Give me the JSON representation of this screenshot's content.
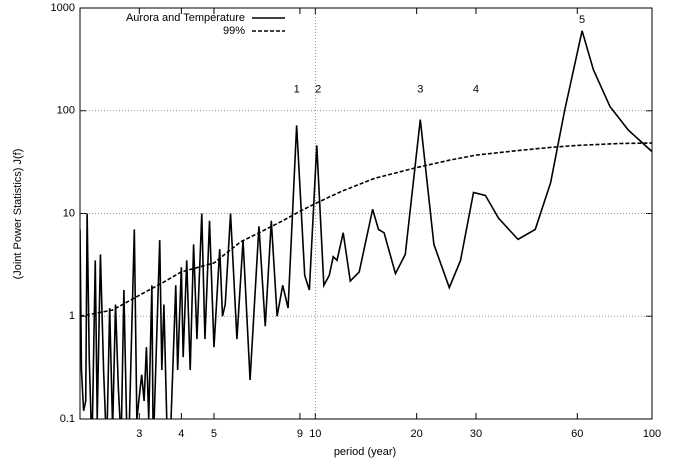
{
  "chart_data": {
    "type": "line",
    "xlabel": "period (year)",
    "ylabel": "(Joint Power Statistics)  J(f)",
    "xscale": "log",
    "yscale": "log",
    "xlim": [
      2,
      100
    ],
    "ylim": [
      0.1,
      1000
    ],
    "xticks": [
      3,
      4,
      5,
      9,
      10,
      20,
      30,
      60,
      100
    ],
    "yticks": [
      0.1,
      1,
      10,
      100,
      1000
    ],
    "grid": "y",
    "vline": 10,
    "legend": "upper left",
    "series": [
      {
        "name": "Aurora and Temperature",
        "color": "#000000",
        "dash": "solid",
        "x": [
          2.0,
          2.02,
          2.05,
          2.08,
          2.1,
          2.13,
          2.17,
          2.22,
          2.25,
          2.3,
          2.35,
          2.4,
          2.45,
          2.5,
          2.55,
          2.6,
          2.65,
          2.7,
          2.75,
          2.8,
          2.9,
          2.95,
          3.05,
          3.1,
          3.15,
          3.2,
          3.27,
          3.3,
          3.45,
          3.5,
          3.55,
          3.62,
          3.7,
          3.85,
          3.9,
          4.0,
          4.05,
          4.15,
          4.25,
          4.35,
          4.45,
          4.6,
          4.7,
          4.85,
          5.0,
          5.2,
          5.3,
          5.4,
          5.6,
          5.85,
          6.1,
          6.4,
          6.8,
          7.1,
          7.4,
          7.7,
          8.0,
          8.3,
          8.8,
          9.3,
          9.6,
          10.1,
          10.6,
          11.0,
          11.3,
          11.6,
          12.1,
          12.7,
          13.5,
          14.8,
          15.4,
          16,
          17.3,
          18.5,
          20.5,
          22.5,
          25,
          27,
          29.5,
          32,
          35,
          40,
          45,
          50,
          55,
          62,
          67,
          75,
          85,
          100
        ],
        "values": [
          7,
          0.3,
          0.12,
          0.15,
          10,
          0.4,
          0.05,
          3.5,
          0.1,
          4,
          0.3,
          0.05,
          1.2,
          0.08,
          1.3,
          0.2,
          0.06,
          1.8,
          0.1,
          0.08,
          7,
          0.1,
          0.27,
          0.15,
          0.5,
          0.1,
          2,
          0.05,
          5.5,
          0.3,
          1.3,
          0.1,
          0.05,
          2,
          0.3,
          3,
          0.4,
          3.5,
          0.3,
          5,
          0.6,
          10,
          0.6,
          8.5,
          0.5,
          4.5,
          1.0,
          1.3,
          10,
          0.6,
          5.5,
          0.24,
          7.5,
          0.8,
          8.5,
          1.0,
          2,
          1.2,
          72,
          2.5,
          1.8,
          46,
          2.0,
          2.5,
          3.8,
          3.5,
          6.5,
          2.2,
          2.7,
          11,
          7,
          6.5,
          2.6,
          4,
          82,
          5,
          1.9,
          3.5,
          16,
          15,
          9,
          5.6,
          7,
          20,
          100,
          600,
          250,
          110,
          65,
          40
        ]
      },
      {
        "name": "99%",
        "color": "#000000",
        "dash": "dashed",
        "x": [
          2,
          2.5,
          3,
          3.5,
          4,
          5,
          6,
          7,
          8,
          9,
          10,
          12,
          15,
          20,
          25,
          30,
          40,
          50,
          60,
          80,
          100
        ],
        "values": [
          1.0,
          1.15,
          1.6,
          2.1,
          2.7,
          3.3,
          5.3,
          6.8,
          8.5,
          10.5,
          12.5,
          16.5,
          22,
          28,
          33,
          37,
          41,
          44,
          46,
          48,
          48.5
        ]
      }
    ],
    "annotations": [
      {
        "text": "1",
        "x": 8.8,
        "y": 160
      },
      {
        "text": "2",
        "x": 10.2,
        "y": 160
      },
      {
        "text": "3",
        "x": 20.5,
        "y": 160
      },
      {
        "text": "4",
        "x": 30,
        "y": 160
      },
      {
        "text": "5",
        "x": 62,
        "y": 760
      }
    ]
  }
}
